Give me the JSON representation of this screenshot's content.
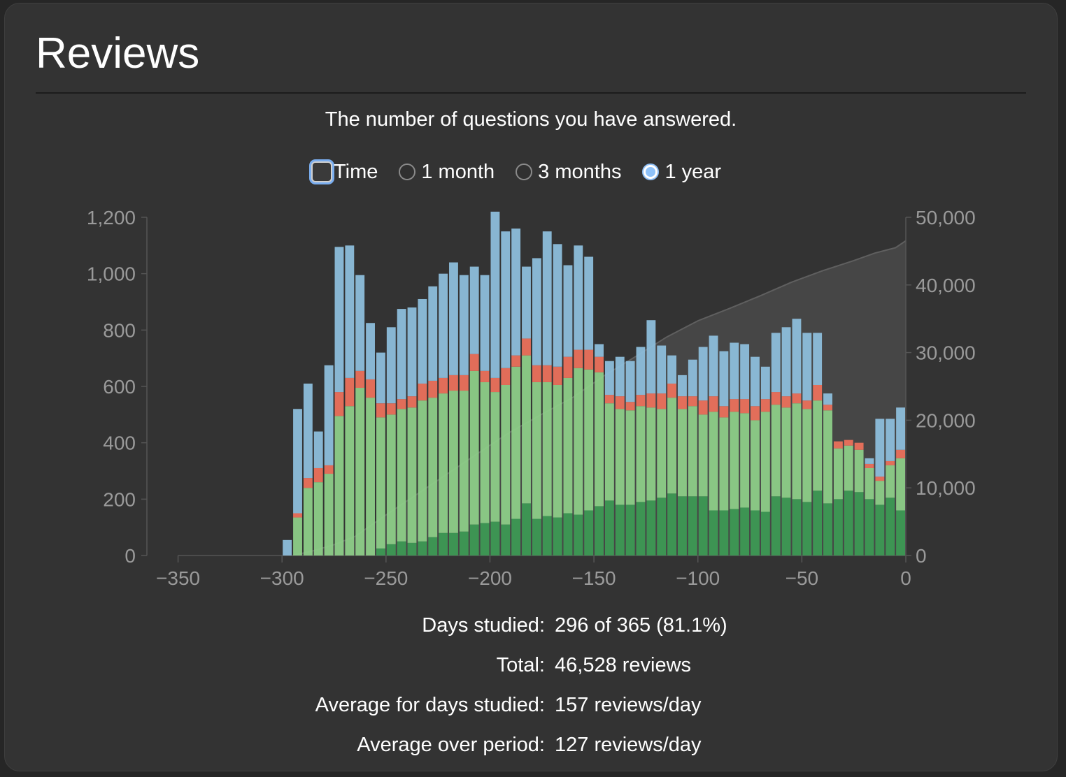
{
  "header": {
    "title": "Reviews"
  },
  "subtitle": "The number of questions you have answered.",
  "controls": {
    "time_label": "Time",
    "time_checked": false,
    "range_options": [
      {
        "label": "1 month",
        "selected": false
      },
      {
        "label": "3 months",
        "selected": false
      },
      {
        "label": "1 year",
        "selected": true
      }
    ]
  },
  "chart_data": {
    "type": "bar",
    "stacked": true,
    "xlim": [
      -365,
      0
    ],
    "ylim": [
      0,
      1200
    ],
    "y2lim": [
      0,
      50000
    ],
    "x_ticks": [
      "−350",
      "−300",
      "−250",
      "−200",
      "−150",
      "−100",
      "−50",
      "0"
    ],
    "x_tick_values": [
      -350,
      -300,
      -250,
      -200,
      -150,
      -100,
      -50,
      0
    ],
    "y_ticks": [
      "0",
      "200",
      "400",
      "600",
      "800",
      "1,000",
      "1,200"
    ],
    "y_tick_values": [
      0,
      200,
      400,
      600,
      800,
      1000,
      1200
    ],
    "y2_ticks": [
      "0",
      "10,000",
      "20,000",
      "30,000",
      "40,000",
      "50,000"
    ],
    "y2_tick_values": [
      0,
      10000,
      20000,
      30000,
      40000,
      50000
    ],
    "bin_size_days": 5,
    "x": [
      -295,
      -290,
      -285,
      -280,
      -275,
      -270,
      -265,
      -260,
      -255,
      -250,
      -245,
      -240,
      -235,
      -230,
      -225,
      -220,
      -215,
      -210,
      -205,
      -200,
      -195,
      -190,
      -185,
      -180,
      -175,
      -170,
      -165,
      -160,
      -155,
      -150,
      -145,
      -140,
      -135,
      -130,
      -125,
      -120,
      -115,
      -110,
      -105,
      -100,
      -95,
      -90,
      -85,
      -80,
      -75,
      -70,
      -65,
      -60,
      -55,
      -50,
      -45,
      -40,
      -35,
      -30,
      -25,
      -20,
      -15,
      -10,
      -5,
      0
    ],
    "series": [
      {
        "color": "#3d9b55",
        "values": [
          0,
          0,
          0,
          0,
          0,
          0,
          0,
          0,
          0,
          25,
          40,
          50,
          45,
          50,
          65,
          80,
          80,
          85,
          110,
          115,
          120,
          110,
          130,
          185,
          130,
          140,
          135,
          150,
          145,
          160,
          175,
          195,
          180,
          180,
          190,
          195,
          205,
          220,
          210,
          210,
          210,
          160,
          160,
          165,
          170,
          160,
          155,
          210,
          205,
          200,
          190,
          230,
          185,
          200,
          230,
          225,
          200,
          180,
          205,
          160
        ]
      },
      {
        "color": "#8fd18a",
        "values": [
          0,
          135,
          240,
          260,
          290,
          495,
          530,
          595,
          560,
          465,
          460,
          470,
          480,
          500,
          495,
          495,
          505,
          500,
          545,
          500,
          460,
          495,
          540,
          525,
          485,
          475,
          470,
          480,
          520,
          500,
          475,
          345,
          340,
          335,
          340,
          330,
          315,
          340,
          310,
          320,
          290,
          350,
          330,
          345,
          335,
          320,
          355,
          325,
          320,
          340,
          330,
          320,
          330,
          180,
          160,
          150,
          110,
          85,
          115,
          185
        ]
      },
      {
        "color": "#f0725c",
        "values": [
          0,
          15,
          35,
          50,
          30,
          85,
          100,
          60,
          65,
          50,
          40,
          35,
          40,
          60,
          60,
          55,
          55,
          55,
          60,
          40,
          50,
          60,
          40,
          60,
          60,
          60,
          65,
          75,
          65,
          70,
          55,
          30,
          45,
          30,
          40,
          50,
          55,
          50,
          45,
          35,
          50,
          55,
          40,
          45,
          50,
          50,
          45,
          45,
          40,
          35,
          30,
          55,
          20,
          25,
          20,
          25,
          15,
          15,
          15,
          30
        ]
      },
      {
        "color": "#8fc1e0",
        "values": [
          55,
          370,
          335,
          130,
          355,
          515,
          470,
          340,
          200,
          180,
          270,
          320,
          315,
          300,
          335,
          370,
          400,
          355,
          310,
          340,
          590,
          485,
          450,
          255,
          380,
          475,
          435,
          325,
          370,
          330,
          45,
          120,
          140,
          145,
          170,
          260,
          170,
          100,
          75,
          130,
          190,
          215,
          195,
          200,
          195,
          175,
          115,
          210,
          245,
          265,
          240,
          185,
          40,
          0,
          0,
          0,
          20,
          205,
          150,
          150
        ]
      }
    ],
    "cumulative": {
      "color": "#555555",
      "values": [
        0,
        700,
        1600,
        2800,
        6000,
        10100,
        13200,
        16300,
        18300,
        20900,
        23400,
        26600,
        29400,
        32300,
        34700,
        36500,
        38400,
        40400,
        42100,
        43600,
        44700,
        45500,
        46528
      ]
    },
    "cumulative_x": [
      -295,
      -285,
      -275,
      -265,
      -250,
      -230,
      -215,
      -200,
      -190,
      -175,
      -160,
      -145,
      -130,
      -115,
      -100,
      -85,
      -70,
      -55,
      -40,
      -25,
      -15,
      -5,
      0
    ]
  },
  "stats": [
    {
      "label": "Days studied:",
      "value": "296 of 365 (81.1%)"
    },
    {
      "label": "Total:",
      "value": "46,528 reviews"
    },
    {
      "label": "Average for days studied:",
      "value": "157 reviews/day"
    },
    {
      "label": "Average over period:",
      "value": "127 reviews/day"
    }
  ]
}
